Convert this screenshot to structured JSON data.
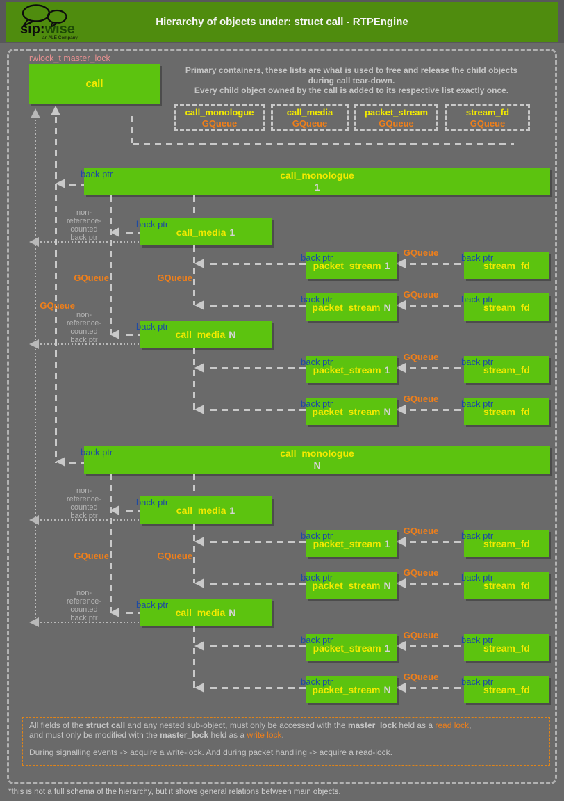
{
  "header": {
    "title": "Hierarchy of objects under: struct call - RTPEngine",
    "logo_primary": "sip:",
    "logo_secondary": "wise",
    "logo_tagline": "an ALE Company"
  },
  "top": {
    "lock_label": "rwlock_t master_lock",
    "call_label": "call",
    "intro": [
      "Primary containers, these lists are what is used to free and release the child objects",
      "during call tear-down.",
      "Every child object owned by the call is added to its respective list exactly once."
    ],
    "queues": [
      {
        "name": "call_monologue",
        "type": "GQueue"
      },
      {
        "name": "call_media",
        "type": "GQueue"
      },
      {
        "name": "packet_stream",
        "type": "GQueue"
      },
      {
        "name": "stream_fd",
        "type": "GQueue"
      }
    ]
  },
  "labels": {
    "back_ptr": "back ptr",
    "gqueue": "GQueue",
    "non_ref": [
      "non-",
      "reference-",
      "counted",
      "back ptr"
    ]
  },
  "groups": [
    {
      "monologue": {
        "name": "call_monologue",
        "index": "1"
      },
      "medias": [
        {
          "name": "call_media",
          "index": "1"
        },
        {
          "name": "call_media",
          "index": "N"
        }
      ],
      "streams": [
        {
          "name": "packet_stream",
          "index": "1",
          "fd": "stream_fd"
        },
        {
          "name": "packet_stream",
          "index": "N",
          "fd": "stream_fd"
        },
        {
          "name": "packet_stream",
          "index": "1",
          "fd": "stream_fd"
        },
        {
          "name": "packet_stream",
          "index": "N",
          "fd": "stream_fd"
        }
      ]
    },
    {
      "monologue": {
        "name": "call_monologue",
        "index": "N"
      },
      "medias": [
        {
          "name": "call_media",
          "index": "1"
        },
        {
          "name": "call_media",
          "index": "N"
        }
      ],
      "streams": [
        {
          "name": "packet_stream",
          "index": "1",
          "fd": "stream_fd"
        },
        {
          "name": "packet_stream",
          "index": "N",
          "fd": "stream_fd"
        },
        {
          "name": "packet_stream",
          "index": "1",
          "fd": "stream_fd"
        },
        {
          "name": "packet_stream",
          "index": "N",
          "fd": "stream_fd"
        }
      ]
    }
  ],
  "notes": {
    "lines": [
      [
        {
          "t": "All fields of the "
        },
        {
          "t": "struct call",
          "b": true
        },
        {
          "t": " and any nested sub-object, must only be accessed with the "
        },
        {
          "t": "master_lock",
          "b": true
        },
        {
          "t": " held as a "
        },
        {
          "t": "read lock",
          "o": true
        },
        {
          "t": ","
        }
      ],
      [
        {
          "t": "and must only be modified with the "
        },
        {
          "t": "master_lock",
          "b": true
        },
        {
          "t": " held as a "
        },
        {
          "t": "write lock",
          "o": true
        },
        {
          "t": "."
        }
      ],
      [],
      [
        {
          "t": "During signalling events -> acquire a write-lock. And during packet handling -> acquire a read-lock."
        }
      ]
    ]
  },
  "footer": "*this is not a full schema of the hierarchy, but it shows general relations between main objects."
}
